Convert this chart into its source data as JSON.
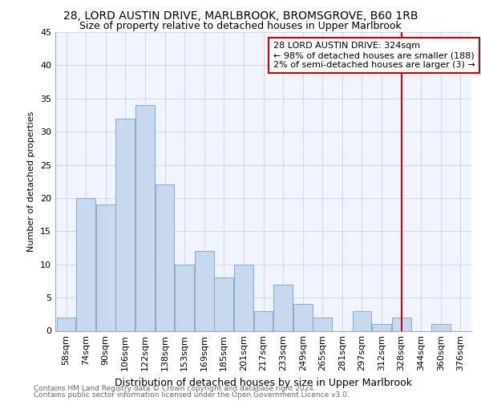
{
  "title1": "28, LORD AUSTIN DRIVE, MARLBROOK, BROMSGROVE, B60 1RB",
  "title2": "Size of property relative to detached houses in Upper Marlbrook",
  "xlabel": "Distribution of detached houses by size in Upper Marlbrook",
  "ylabel": "Number of detached properties",
  "footnote1": "Contains HM Land Registry data © Crown copyright and database right 2024.",
  "footnote2": "Contains public sector information licensed under the Open Government Licence v3.0.",
  "categories": [
    "58sqm",
    "74sqm",
    "90sqm",
    "106sqm",
    "122sqm",
    "138sqm",
    "153sqm",
    "169sqm",
    "185sqm",
    "201sqm",
    "217sqm",
    "233sqm",
    "249sqm",
    "265sqm",
    "281sqm",
    "297sqm",
    "312sqm",
    "328sqm",
    "344sqm",
    "360sqm",
    "376sqm"
  ],
  "values": [
    2,
    20,
    19,
    32,
    34,
    22,
    10,
    12,
    8,
    10,
    3,
    7,
    4,
    2,
    0,
    3,
    1,
    2,
    0,
    1,
    0
  ],
  "bar_color": "#c8d8ee",
  "bar_edgecolor": "#8ab0d0",
  "vline_color": "#cc0000",
  "annotation_line1": "28 LORD AUSTIN DRIVE: 324sqm",
  "annotation_line2": "← 98% of detached houses are smaller (188)",
  "annotation_line3": "2% of semi-detached houses are larger (3) →",
  "annotation_box_color": "#cc0000",
  "ylim": [
    0,
    45
  ],
  "yticks": [
    0,
    5,
    10,
    15,
    20,
    25,
    30,
    35,
    40,
    45
  ],
  "grid_color": "#cccccc",
  "bg_color": "#f0f4ff",
  "title1_fontsize": 10,
  "title2_fontsize": 9,
  "xlabel_fontsize": 9,
  "ylabel_fontsize": 8,
  "tick_fontsize": 8,
  "footnote_fontsize": 6.5,
  "vline_idx": 17
}
